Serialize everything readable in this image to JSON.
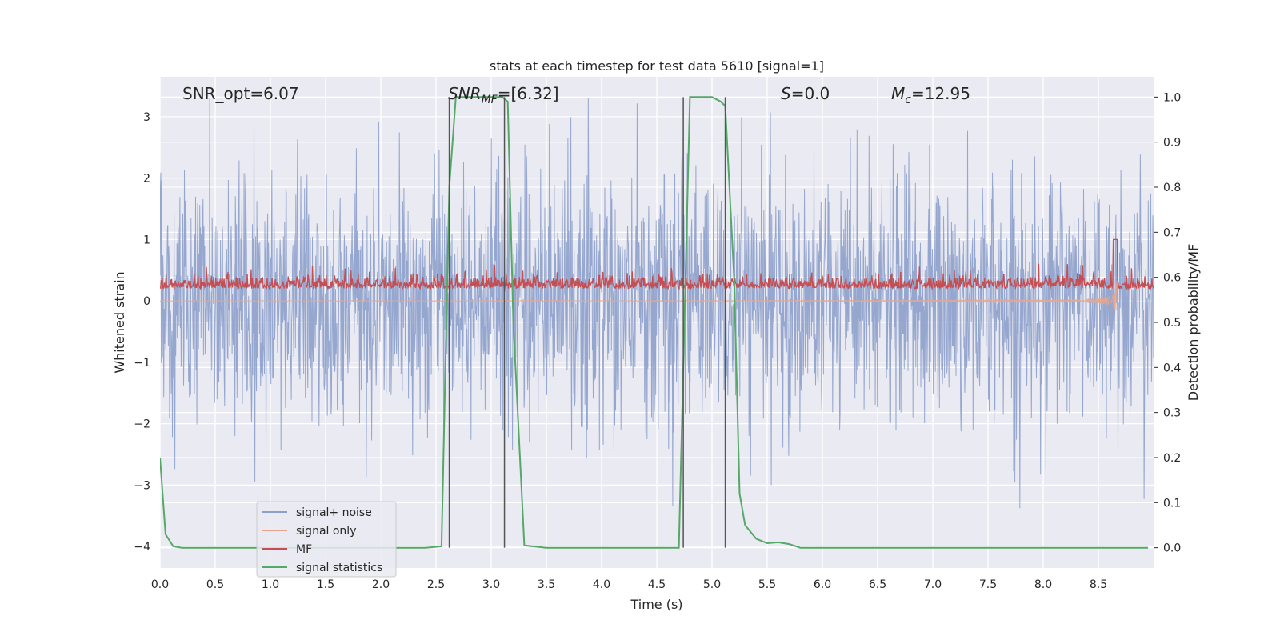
{
  "chart_data": {
    "type": "line",
    "title": "stats at each timestep for test data 5610 [signal=1]",
    "xlabel": "Time (s)",
    "ylabel": "Whitened strain",
    "ylabel_right": "Detection probability/MF",
    "xlim": [
      0,
      9.0
    ],
    "ylim": [
      -4.35,
      3.65
    ],
    "ylim_right": [
      -0.045,
      1.045
    ],
    "x_ticks": [
      "0.0",
      "0.5",
      "1.0",
      "1.5",
      "2.0",
      "2.5",
      "3.0",
      "3.5",
      "4.0",
      "4.5",
      "5.0",
      "5.5",
      "6.0",
      "6.5",
      "7.0",
      "7.5",
      "8.0",
      "8.5"
    ],
    "x_tick_values": [
      0,
      0.5,
      1,
      1.5,
      2,
      2.5,
      3,
      3.5,
      4,
      4.5,
      5,
      5.5,
      6,
      6.5,
      7,
      7.5,
      8,
      8.5
    ],
    "y_ticks": [
      "3",
      "2",
      "1",
      "0",
      "−1",
      "−2",
      "−3",
      "−4"
    ],
    "y_tick_values": [
      3,
      2,
      1,
      0,
      -1,
      -2,
      -3,
      -4
    ],
    "y_ticks_right": [
      "1.0",
      "0.9",
      "0.8",
      "0.7",
      "0.6",
      "0.5",
      "0.4",
      "0.3",
      "0.2",
      "0.1",
      "0.0"
    ],
    "y_tick_values_right": [
      1.0,
      0.9,
      0.8,
      0.7,
      0.6,
      0.5,
      0.4,
      0.3,
      0.2,
      0.1,
      0.0
    ],
    "grid": true,
    "legend_position": "lower-left",
    "annotations": {
      "snr_opt": "SNR_opt=6.07",
      "snr_mf_symbol": "SNR",
      "snr_mf_sub": "MF",
      "snr_mf_value": "=[6.32]",
      "s_symbol": "S",
      "s_value": "=0.0",
      "mc_symbol": "M",
      "mc_sub": "c",
      "mc_value": "=12.95"
    },
    "vertical_markers": [
      2.62,
      3.12,
      4.74,
      5.12
    ],
    "series": [
      {
        "name": "signal+ noise",
        "color": "#8da0cb",
        "kind": "noise",
        "amplitude_rms": 1.0,
        "x_range": [
          0,
          9.0
        ]
      },
      {
        "name": "signal only",
        "color": "#e8a58b",
        "kind": "chirp",
        "x_range": [
          0,
          8.67
        ],
        "peak": 1.0
      },
      {
        "name": "MF",
        "color": "#c44e52",
        "kind": "mf",
        "baseline": 0.2,
        "x_range": [
          0,
          9.0
        ]
      },
      {
        "name": "signal statistics",
        "color": "#55a868",
        "kind": "line",
        "x": [
          0.0,
          0.05,
          0.12,
          0.2,
          0.3,
          0.5,
          1.0,
          1.5,
          2.0,
          2.4,
          2.55,
          2.62,
          2.68,
          2.75,
          3.0,
          3.1,
          3.15,
          3.2,
          3.3,
          3.5,
          4.0,
          4.5,
          4.7,
          4.75,
          4.8,
          4.9,
          5.0,
          5.08,
          5.12,
          5.2,
          5.25,
          5.3,
          5.4,
          5.5,
          5.6,
          5.7,
          5.8,
          5.9,
          6.0,
          7.0,
          8.0,
          8.95
        ],
        "y": [
          0.2,
          0.03,
          0.003,
          0.0,
          0.0,
          0.0,
          0.0,
          0.0,
          0.0,
          0.0,
          0.003,
          0.8,
          1.0,
          1.0,
          1.0,
          1.0,
          0.99,
          0.5,
          0.005,
          0.0,
          0.0,
          0.0,
          0.0,
          0.5,
          1.0,
          1.0,
          1.0,
          0.99,
          0.98,
          0.6,
          0.12,
          0.05,
          0.02,
          0.01,
          0.012,
          0.008,
          0.0,
          0.0,
          0.0,
          0.0,
          0.0,
          0.0
        ]
      }
    ]
  }
}
